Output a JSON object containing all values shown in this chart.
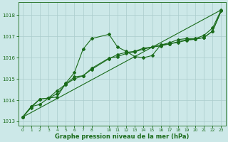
{
  "bg_color": "#cce8e8",
  "grid_color": "#aacccc",
  "line_color": "#1a6b1a",
  "xlabel": "Graphe pression niveau de la mer (hPa)",
  "xlim": [
    -0.5,
    23.5
  ],
  "ylim": [
    1012.8,
    1018.6
  ],
  "yticks": [
    1013,
    1014,
    1015,
    1016,
    1017,
    1018
  ],
  "xticks": [
    0,
    1,
    2,
    3,
    4,
    5,
    6,
    7,
    8,
    10,
    11,
    12,
    13,
    14,
    15,
    16,
    17,
    18,
    19,
    20,
    21,
    22,
    23
  ],
  "series_jagged": {
    "x": [
      0,
      1,
      2,
      3,
      4,
      5,
      6,
      7,
      8,
      10,
      11,
      12,
      13,
      14,
      15,
      16,
      17,
      18,
      19,
      20,
      21,
      22,
      23
    ],
    "y": [
      1013.2,
      1013.7,
      1013.8,
      1014.1,
      1014.15,
      1014.8,
      1015.3,
      1016.4,
      1016.9,
      1017.1,
      1016.5,
      1016.3,
      1016.05,
      1016.0,
      1016.1,
      1016.6,
      1016.7,
      1016.85,
      1016.9,
      1016.9,
      1017.05,
      1017.4,
      1018.25
    ]
  },
  "series_smooth": {
    "x": [
      0,
      1,
      2,
      3,
      4,
      5,
      6,
      7,
      8,
      10,
      11,
      12,
      13,
      14,
      15,
      16,
      17,
      18,
      19,
      20,
      21,
      22,
      23
    ],
    "y": [
      1013.2,
      1013.65,
      1014.05,
      1014.1,
      1014.45,
      1014.75,
      1015.1,
      1015.15,
      1015.45,
      1015.95,
      1016.15,
      1016.25,
      1016.3,
      1016.45,
      1016.5,
      1016.6,
      1016.65,
      1016.75,
      1016.85,
      1016.88,
      1016.95,
      1017.25,
      1018.2
    ]
  },
  "series_trend": {
    "x": [
      0,
      23
    ],
    "y": [
      1013.2,
      1018.25
    ]
  },
  "series_mid": {
    "x": [
      0,
      1,
      2,
      3,
      4,
      5,
      6,
      7,
      8,
      10,
      11,
      12,
      13,
      14,
      15,
      16,
      17,
      18,
      19,
      20,
      21,
      22,
      23
    ],
    "y": [
      1013.2,
      1013.7,
      1014.05,
      1014.1,
      1014.3,
      1014.75,
      1015.0,
      1015.15,
      1015.5,
      1015.98,
      1016.05,
      1016.2,
      1016.28,
      1016.4,
      1016.5,
      1016.55,
      1016.65,
      1016.72,
      1016.82,
      1016.87,
      1016.95,
      1017.25,
      1018.2
    ]
  }
}
